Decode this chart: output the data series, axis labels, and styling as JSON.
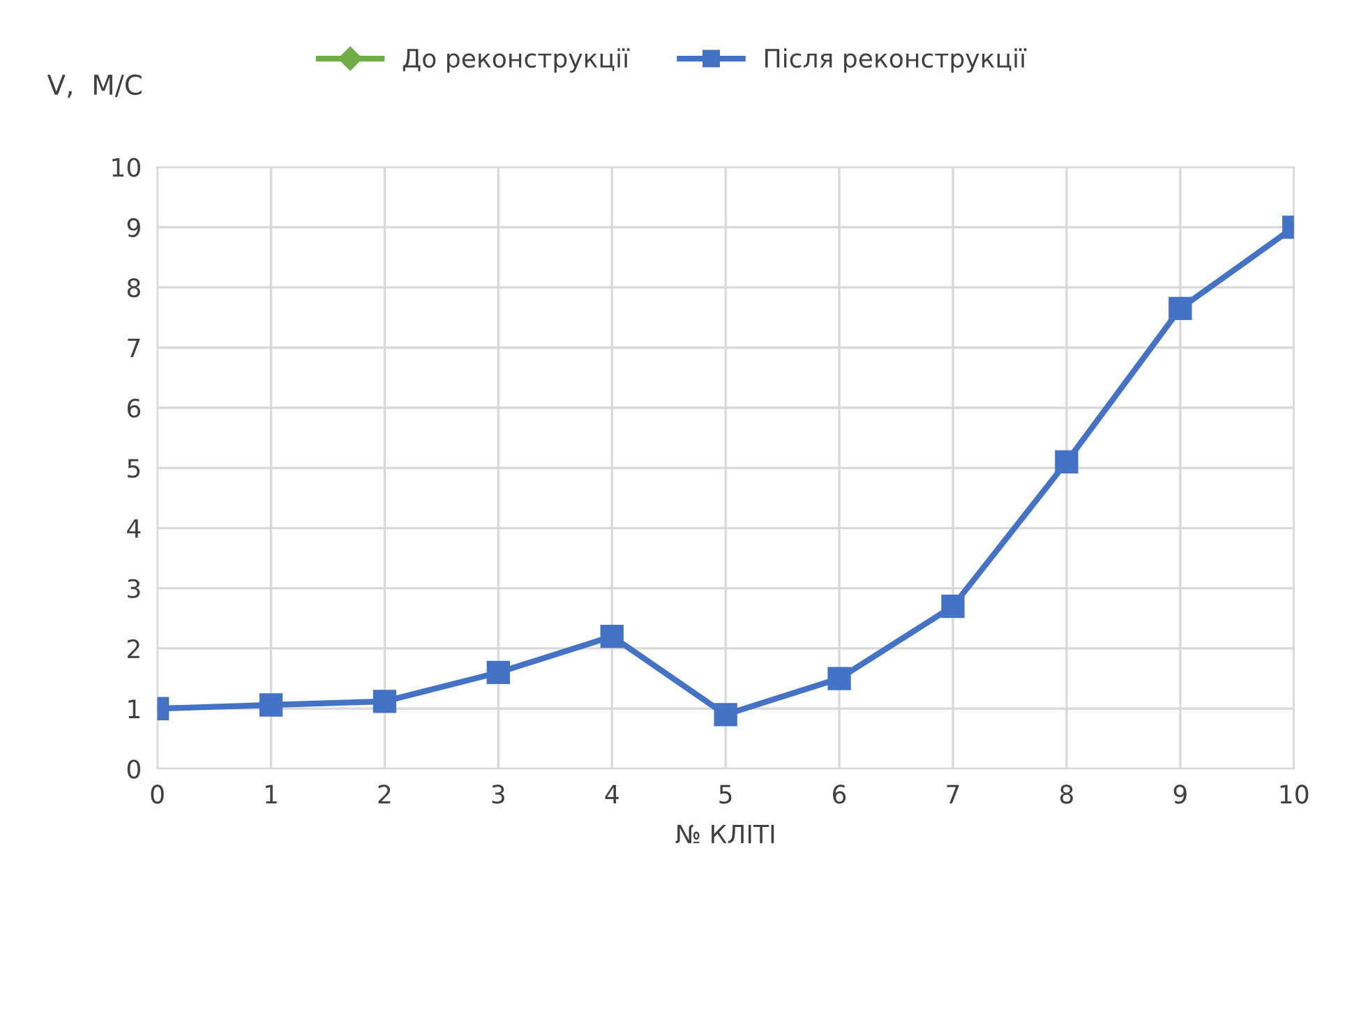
{
  "chart_data": {
    "type": "line",
    "xlabel": "№ КЛІТІ",
    "ylabel": "V,  М/С",
    "x": [
      0,
      1,
      2,
      3,
      4,
      5,
      6,
      7,
      8,
      9,
      10
    ],
    "series": [
      {
        "name": "До реконструкції",
        "color": "#70ad47",
        "marker": "diamond",
        "values": [
          null,
          null,
          null,
          null,
          null,
          null,
          null,
          null,
          null,
          null,
          null
        ]
      },
      {
        "name": "Після реконструкції",
        "color": "#4472c4",
        "marker": "square",
        "values": [
          1.0,
          1.06,
          1.12,
          1.6,
          2.2,
          0.9,
          1.5,
          2.7,
          5.1,
          7.65,
          9.0
        ]
      }
    ],
    "xlim": [
      0,
      10
    ],
    "xticks": [
      0,
      1,
      2,
      3,
      4,
      5,
      6,
      7,
      8,
      9,
      10
    ],
    "ylim": [
      0,
      10
    ],
    "yticks": [
      0,
      1,
      2,
      3,
      4,
      5,
      6,
      7,
      8,
      9,
      10
    ],
    "grid": true,
    "legend": "top",
    "line_style": "solid"
  }
}
